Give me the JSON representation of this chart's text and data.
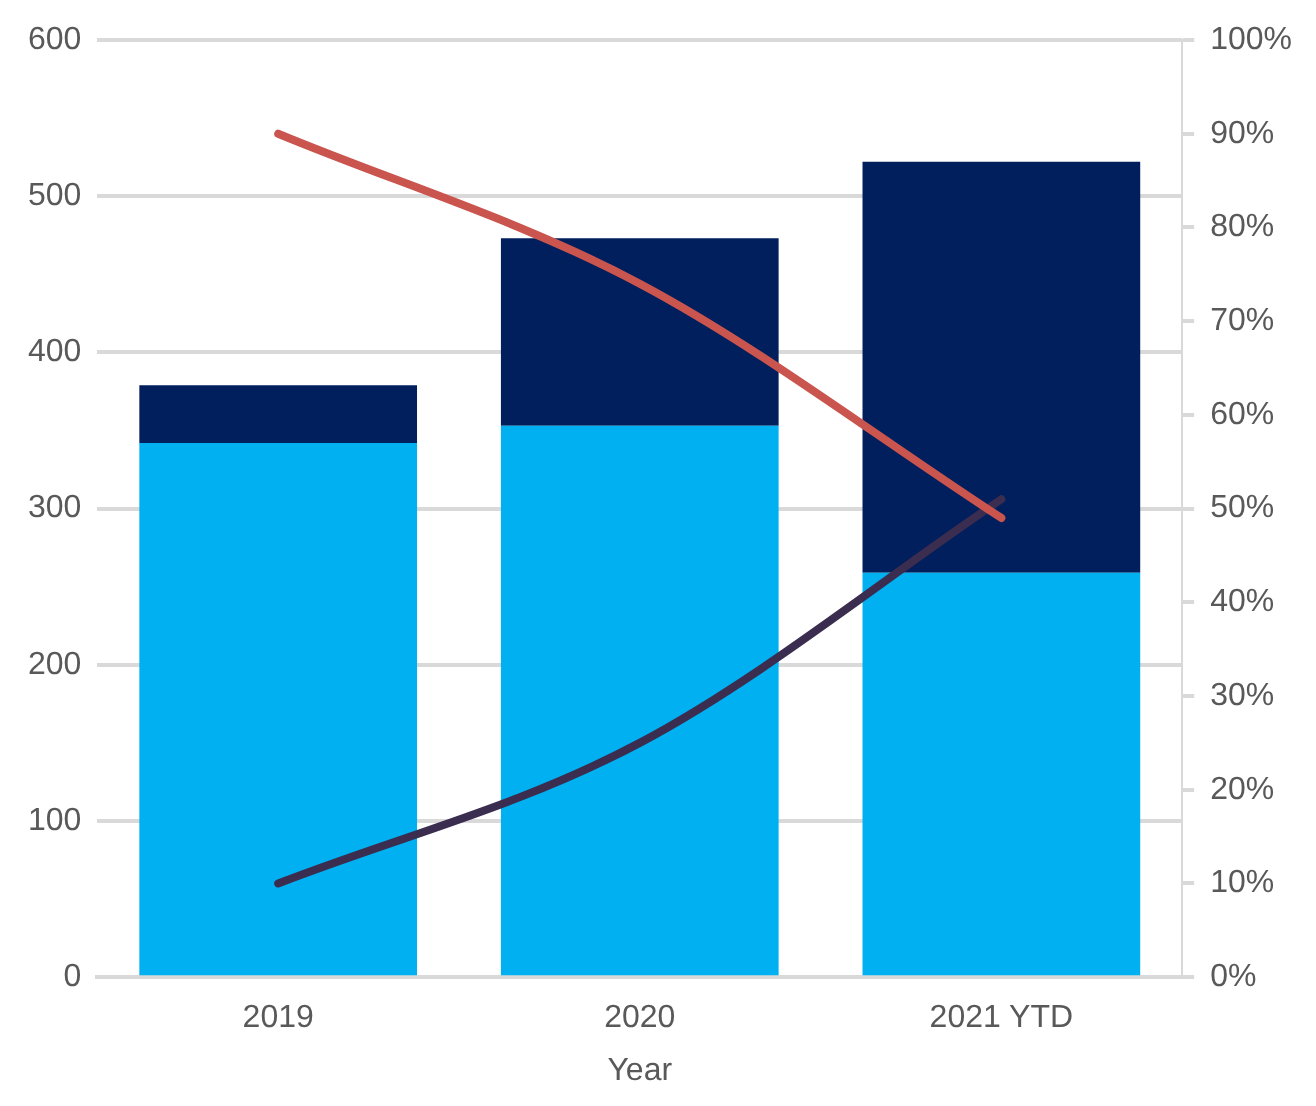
{
  "chart_data": {
    "type": "bar",
    "stacked": true,
    "xlabel": "Year",
    "categories": [
      "2019",
      "2020",
      "2021 YTD"
    ],
    "series": [
      {
        "color": "#00b0f0",
        "values": [
          342,
          353,
          259
        ]
      },
      {
        "color": "#001f5c",
        "values": [
          37,
          120,
          263
        ]
      },
      {
        "type": "line",
        "axis": "y2",
        "color": "#c9554e",
        "values": [
          90,
          74,
          49
        ]
      },
      {
        "type": "line",
        "axis": "y2",
        "color": "#3b2d50",
        "values": [
          10,
          25,
          51
        ]
      }
    ],
    "ylim": [
      0,
      600
    ],
    "yticks": [
      0,
      100,
      200,
      300,
      400,
      500,
      600
    ],
    "y2lim": [
      0,
      100
    ],
    "y2ticks": [
      {
        "value": 0,
        "label": "0%"
      },
      {
        "value": 10,
        "label": "10%"
      },
      {
        "value": 20,
        "label": "20%"
      },
      {
        "value": 30,
        "label": "30%"
      },
      {
        "value": 40,
        "label": "40%"
      },
      {
        "value": 50,
        "label": "50%"
      },
      {
        "value": 60,
        "label": "60%"
      },
      {
        "value": 70,
        "label": "70%"
      },
      {
        "value": 80,
        "label": "80%"
      },
      {
        "value": 90,
        "label": "90%"
      },
      {
        "value": 100,
        "label": "100%"
      }
    ],
    "grid": "y",
    "legend": false,
    "marker": "none"
  }
}
